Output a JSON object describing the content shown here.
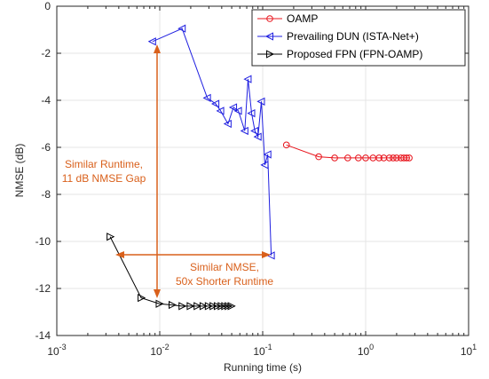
{
  "chart_data": {
    "type": "line",
    "title": "",
    "xlabel": "Running time (s)",
    "ylabel": "NMSE (dB)",
    "xscale": "log",
    "xlim": [
      0.001,
      10
    ],
    "ylim": [
      -14,
      0
    ],
    "grid": true,
    "legend_position": "top-right",
    "x_ticks": [
      {
        "base": "10",
        "exp": "-3"
      },
      {
        "base": "10",
        "exp": "-2"
      },
      {
        "base": "10",
        "exp": "-1"
      },
      {
        "base": "10",
        "exp": "0"
      },
      {
        "base": "10",
        "exp": "1"
      }
    ],
    "y_ticks": [
      "0",
      "-2",
      "-4",
      "-6",
      "-8",
      "-10",
      "-12",
      "-14"
    ],
    "series": [
      {
        "name": "OAMP",
        "color": "#e8141c",
        "marker": "circle",
        "x": [
          0.17,
          0.35,
          0.5,
          0.67,
          0.85,
          1.0,
          1.18,
          1.35,
          1.5,
          1.7,
          1.85,
          2.0,
          2.2,
          2.35,
          2.5,
          2.65
        ],
        "y": [
          -5.9,
          -6.4,
          -6.45,
          -6.45,
          -6.45,
          -6.45,
          -6.45,
          -6.45,
          -6.45,
          -6.45,
          -6.45,
          -6.45,
          -6.45,
          -6.45,
          -6.45,
          -6.45
        ]
      },
      {
        "name": "Prevailing DUN (ISTA-Net+)",
        "color": "#1f1fe0",
        "marker": "triangle-left",
        "x": [
          0.0085,
          0.0165,
          0.029,
          0.035,
          0.039,
          0.046,
          0.052,
          0.058,
          0.067,
          0.072,
          0.078,
          0.084,
          0.09,
          0.097,
          0.105,
          0.112,
          0.121
        ],
        "y": [
          -1.5,
          -0.95,
          -3.9,
          -4.15,
          -4.45,
          -5.0,
          -4.3,
          -4.45,
          -5.3,
          -3.1,
          -4.55,
          -5.3,
          -5.55,
          -4.05,
          -6.75,
          -6.3,
          -10.6
        ]
      },
      {
        "name": "Proposed FPN (FPN-OAMP)",
        "color": "#000000",
        "marker": "triangle-right",
        "x": [
          0.0033,
          0.0066,
          0.0099,
          0.0132,
          0.0165,
          0.0198,
          0.0231,
          0.0264,
          0.0297,
          0.033,
          0.0363,
          0.0396,
          0.0429,
          0.0462,
          0.0495
        ],
        "y": [
          -9.8,
          -12.4,
          -12.65,
          -12.7,
          -12.75,
          -12.75,
          -12.75,
          -12.75,
          -12.75,
          -12.75,
          -12.75,
          -12.75,
          -12.75,
          -12.75,
          -12.75
        ]
      }
    ],
    "annotations": [
      {
        "lines": [
          "Similar Runtime,",
          "11 dB NMSE Gap"
        ],
        "color": "#d9601b"
      },
      {
        "lines": [
          "Similar NMSE,",
          "50x Shorter Runtime"
        ],
        "color": "#d9601b"
      }
    ]
  }
}
